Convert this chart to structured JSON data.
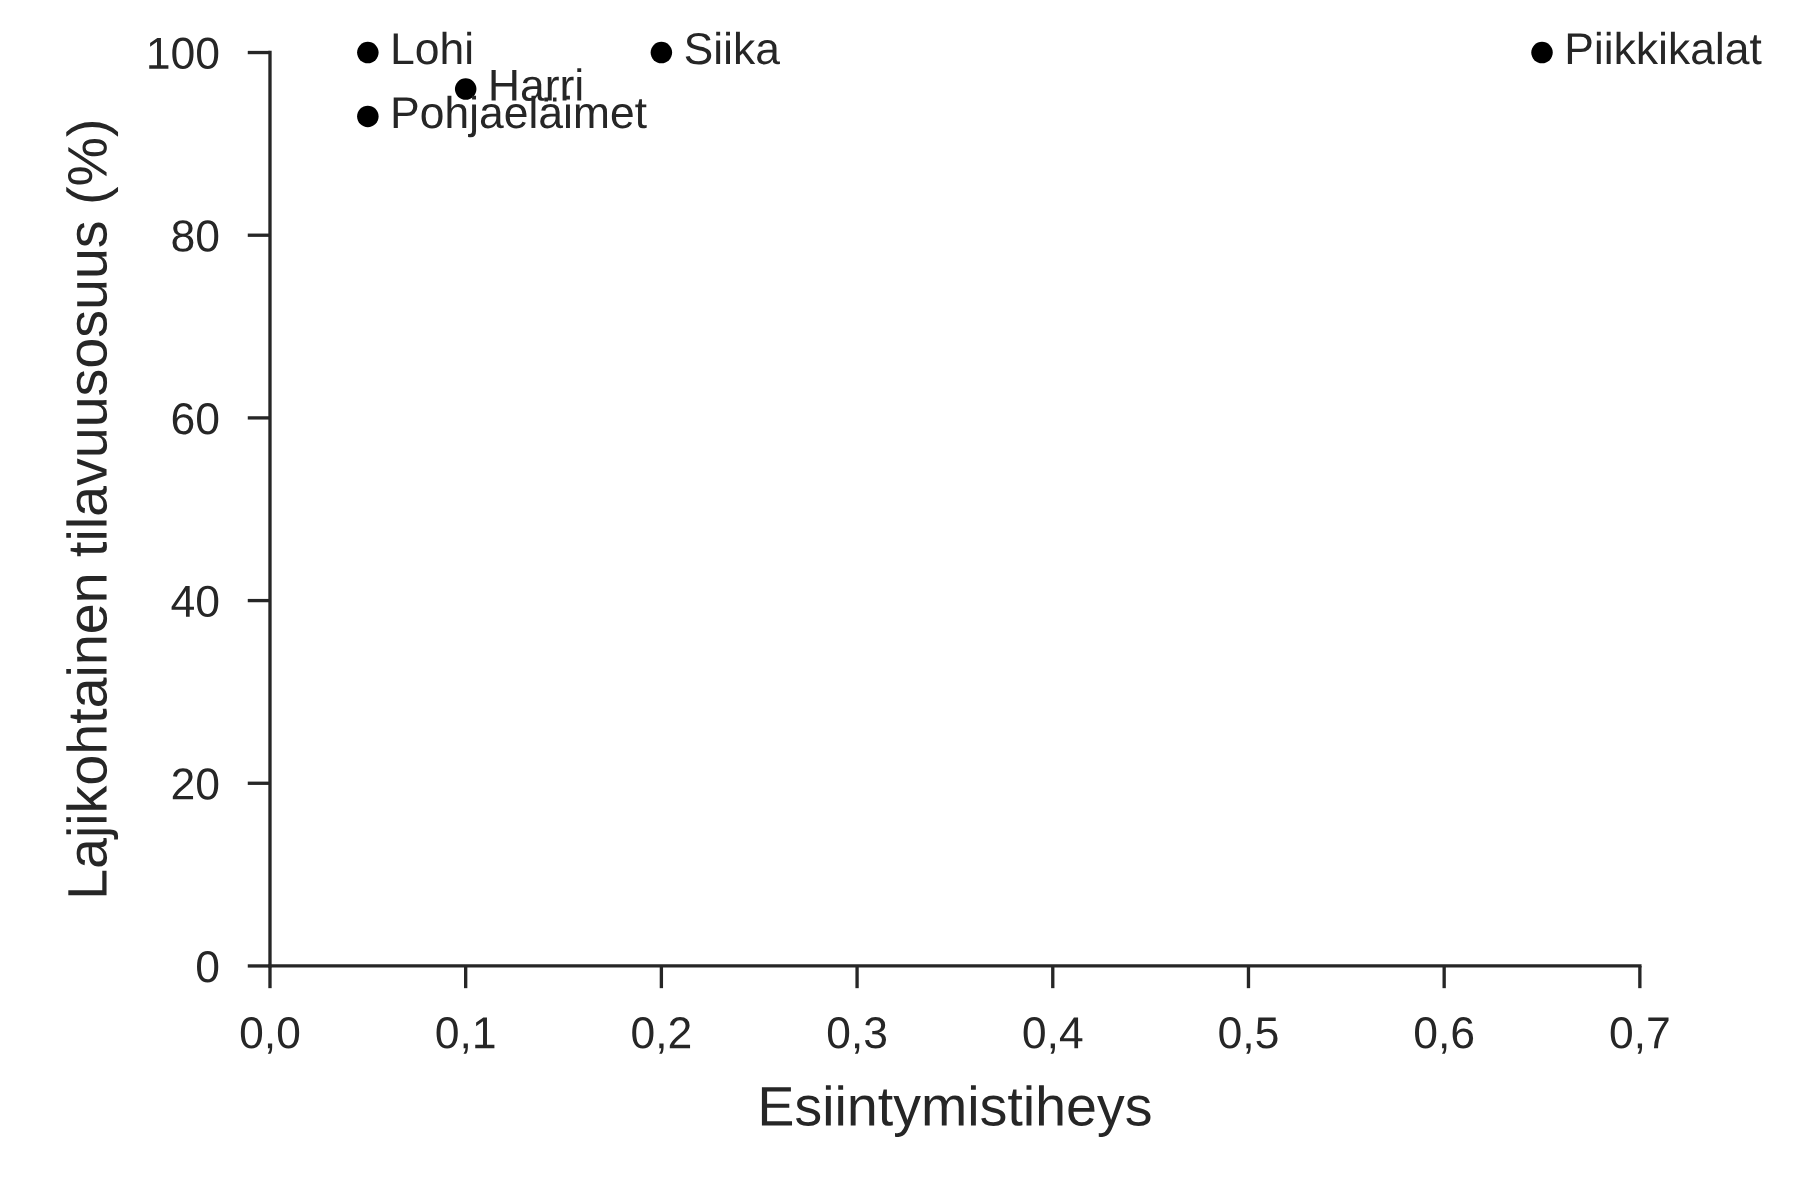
{
  "chart_data": {
    "type": "scatter",
    "xlabel": "Esiintymistiheys",
    "ylabel": "Lajikohtainen tilavuusosuus (%)",
    "x": [
      0.05,
      0.1,
      0.2,
      0.05,
      0.65
    ],
    "series": [
      {
        "color": "#000000",
        "values": [
          100,
          96,
          100,
          93,
          100
        ]
      }
    ],
    "annotations": [
      {
        "text": "Lohi",
        "x": 0.05,
        "y": 100
      },
      {
        "text": "Harri",
        "x": 0.1,
        "y": 96
      },
      {
        "text": "Siika",
        "x": 0.2,
        "y": 100
      },
      {
        "text": "Pohjaeläimet",
        "x": 0.05,
        "y": 93
      },
      {
        "text": "Piikkikalat",
        "x": 0.65,
        "y": 100
      }
    ],
    "xlim": [
      0,
      0.7
    ],
    "ylim": [
      0,
      100
    ],
    "xticks": [
      {
        "value": 0,
        "label": "0,0"
      },
      {
        "value": 0.1,
        "label": "0,1"
      },
      {
        "value": 0.2,
        "label": "0,2"
      },
      {
        "value": 0.3,
        "label": "0,3"
      },
      {
        "value": 0.4,
        "label": "0,4"
      },
      {
        "value": 0.5,
        "label": "0,5"
      },
      {
        "value": 0.6,
        "label": "0,6"
      },
      {
        "value": 0.7,
        "label": "0,7"
      }
    ],
    "yticks": [
      0,
      20,
      40,
      60,
      80,
      100
    ],
    "grid": false,
    "marker": "circle"
  }
}
